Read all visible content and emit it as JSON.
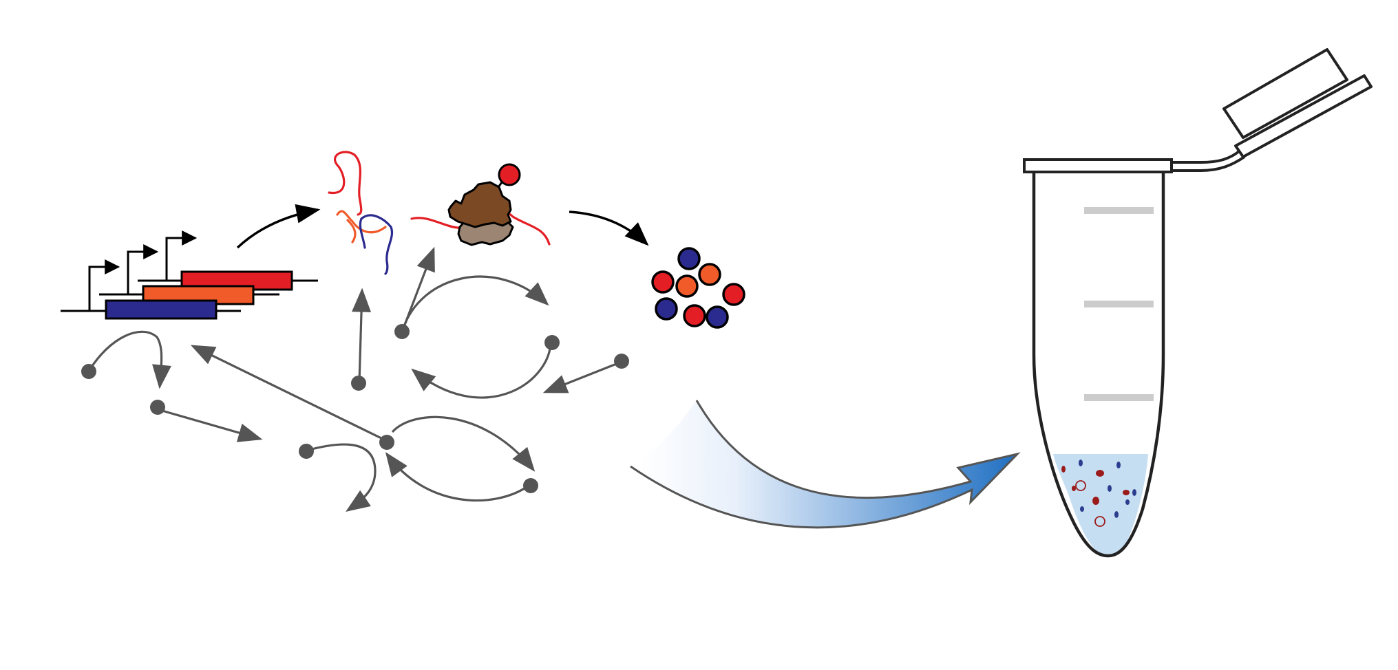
{
  "colors": {
    "gene_red": "#e31e24",
    "gene_orange": "#f15a29",
    "gene_blue": "#2b2a8e",
    "network_gray": "#555555",
    "ribosome_dark": "#7b4a25",
    "ribosome_light": "#9c8573",
    "arrow_blue": "#1f6fc2",
    "liquid": "#c6def2",
    "tube_mark": "#cccccc",
    "particle_red": "#9b1b1b",
    "particle_blue": "#2a3d8f"
  },
  "icons": [
    "operon-genes-icon",
    "mrna-strands-icon",
    "ribosome-translation-icon",
    "protein-cluster-icon",
    "regulatory-network-icon",
    "gradient-transfer-arrow-icon",
    "microcentrifuge-tube-icon"
  ]
}
